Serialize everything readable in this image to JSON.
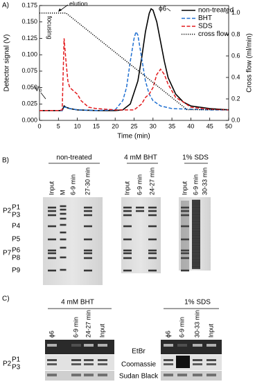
{
  "chart_data": {
    "type": "line",
    "panel_label": "A)",
    "xlabel": "Time (min)",
    "ylabel": "Detector signal (V)",
    "y2label": "Cross flow (ml/min)",
    "xlim": [
      0,
      50
    ],
    "xticks": [
      0,
      5,
      10,
      15,
      20,
      25,
      30,
      35,
      40,
      45,
      50
    ],
    "ylim": [
      0,
      0.175
    ],
    "yticks": [
      {
        "value": 0,
        "label": "0.000"
      },
      0.025,
      {
        "value": 0.05,
        "label": "0.050"
      },
      0.075,
      {
        "value": 0.1,
        "label": "0.100"
      },
      0.125,
      {
        "value": 0.15,
        "label": "0.150"
      },
      0.175
    ],
    "y2lim": [
      0,
      1.07
    ],
    "y2ticks": [
      {
        "value": 0,
        "label": "0.0"
      },
      0.2,
      0.4,
      0.6,
      0.8,
      {
        "value": 1,
        "label": "1.0"
      }
    ],
    "legend": "upper right",
    "annotations": [
      "elution",
      "focusing",
      "ϕ6",
      "V₀"
    ],
    "series": [
      {
        "name": "non-treated",
        "color": "#000000",
        "dash": "solid",
        "x": [
          0,
          5,
          6,
          6.5,
          7,
          8,
          10,
          15,
          20,
          22,
          24,
          26,
          27,
          28,
          29,
          29.5,
          30,
          31,
          32,
          33,
          34,
          36,
          38,
          40,
          45,
          50
        ],
        "values": [
          0.015,
          0.015,
          0.015,
          0.022,
          0.02,
          0.018,
          0.016,
          0.015,
          0.015,
          0.016,
          0.025,
          0.06,
          0.095,
          0.135,
          0.163,
          0.17,
          0.168,
          0.15,
          0.12,
          0.09,
          0.065,
          0.04,
          0.028,
          0.022,
          0.018,
          0.016
        ]
      },
      {
        "name": "BHT",
        "color": "#1f6fd1",
        "dash": "dashed",
        "x": [
          0,
          5,
          6,
          6.5,
          7,
          8,
          10,
          15,
          20,
          22,
          23,
          24,
          25,
          25.5,
          26,
          27,
          28,
          29,
          30,
          32,
          35,
          40,
          45,
          50
        ],
        "values": [
          0.015,
          0.015,
          0.015,
          0.02,
          0.02,
          0.018,
          0.016,
          0.015,
          0.016,
          0.03,
          0.05,
          0.09,
          0.125,
          0.135,
          0.13,
          0.095,
          0.06,
          0.04,
          0.03,
          0.022,
          0.018,
          0.017,
          0.016,
          0.016
        ]
      },
      {
        "name": "SDS",
        "color": "#e3191c",
        "dash": "dashed",
        "x": [
          0,
          5,
          6,
          6.5,
          7,
          7.5,
          8,
          9,
          10,
          11,
          12,
          13,
          15,
          20,
          25,
          27,
          28,
          29,
          30,
          31,
          32,
          33,
          34,
          36,
          38,
          40,
          45,
          50
        ],
        "values": [
          0.015,
          0.015,
          0.016,
          0.125,
          0.09,
          0.06,
          0.05,
          0.045,
          0.04,
          0.03,
          0.025,
          0.02,
          0.018,
          0.016,
          0.016,
          0.025,
          0.035,
          0.04,
          0.05,
          0.07,
          0.078,
          0.07,
          0.055,
          0.035,
          0.028,
          0.02,
          0.017,
          0.016
        ]
      },
      {
        "name": "cross flow",
        "color": "#000000",
        "dash": "dotted",
        "axis": "y2",
        "x": [
          0,
          7,
          39,
          50
        ],
        "values": [
          1,
          1,
          0.1,
          0.1
        ]
      }
    ]
  },
  "panel_b": {
    "label": "B)",
    "groups": [
      {
        "title": "non-treated",
        "lanes": [
          "Input",
          "M",
          "6-9 min",
          "27-30 min"
        ]
      },
      {
        "title": "4 mM BHT",
        "lanes": [
          "Input",
          "6-9 min",
          "24-27 min"
        ]
      },
      {
        "title": "1% SDS",
        "lanes": [
          "Input",
          "6-9 min",
          "30-33 min"
        ]
      }
    ],
    "bands": [
      "P1",
      "P2",
      "P3",
      "P4",
      "P5",
      "P6",
      "P7",
      "P8",
      "P9"
    ]
  },
  "panel_c": {
    "label": "C)",
    "groups": [
      {
        "title": "4 mM BHT",
        "lanes": [
          "ϕ6",
          "6-9 min",
          "24-27 min",
          "Input"
        ]
      },
      {
        "title": "1% SDS",
        "lanes": [
          "ϕ6",
          "6-9 min",
          "30-33 min",
          "Input"
        ]
      }
    ],
    "stains": [
      "EtBr",
      "Coomassie",
      "Sudan Black"
    ],
    "bands": [
      "P1",
      "P2",
      "P3"
    ]
  }
}
